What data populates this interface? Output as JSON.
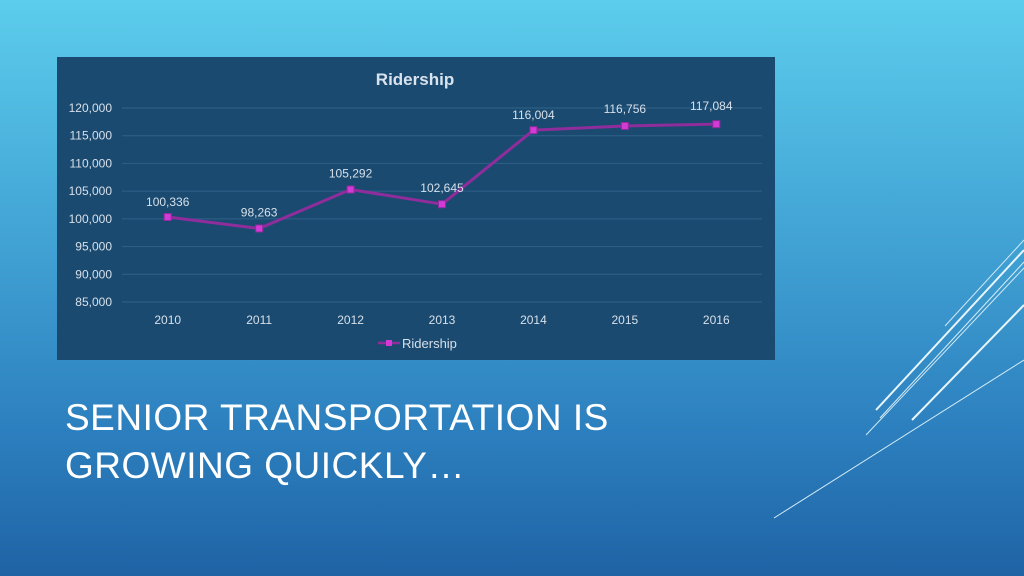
{
  "slide": {
    "title_line1": "SENIOR TRANSPORTATION IS",
    "title_line2": "GROWING QUICKLY…"
  },
  "colors": {
    "line": "#8e2d9b",
    "marker": "#d33ad6",
    "panel": "#1b4a70",
    "gridline": "#2f6188"
  },
  "chart_data": {
    "type": "line",
    "title": "Ridership",
    "categories": [
      "2010",
      "2011",
      "2012",
      "2013",
      "2014",
      "2015",
      "2016"
    ],
    "series": [
      {
        "name": "Ridership",
        "values": [
          100336,
          98263,
          105292,
          102645,
          116004,
          116756,
          117084
        ],
        "labels": [
          "100,336",
          "98,263",
          "105,292",
          "102,645",
          "116,004",
          "116,756",
          "117,084"
        ]
      }
    ],
    "ylim": [
      85000,
      120000
    ],
    "yticks": [
      "85,000",
      "90,000",
      "95,000",
      "100,000",
      "105,000",
      "110,000",
      "115,000",
      "120,000"
    ],
    "ytick_values": [
      85000,
      90000,
      95000,
      100000,
      105000,
      110000,
      115000,
      120000
    ],
    "grid": true,
    "legend": "bottom",
    "marker": "square"
  }
}
